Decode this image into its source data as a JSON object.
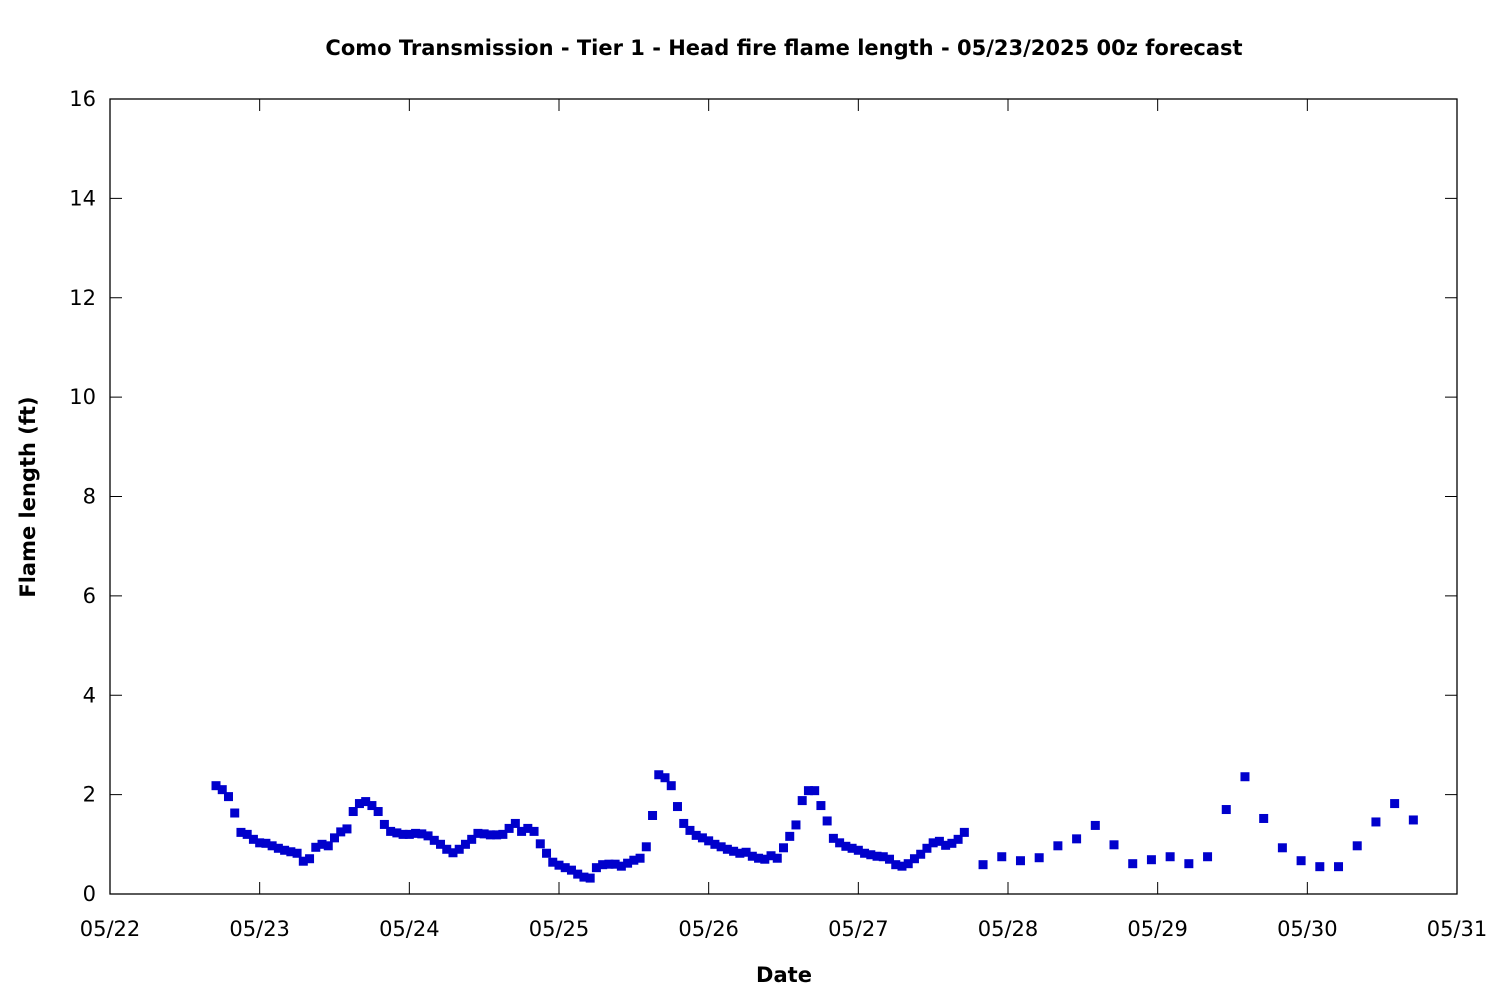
{
  "chart_data": {
    "type": "scatter",
    "title": "Como Transmission - Tier 1 - Head fire flame length - 05/23/2025 00z forecast",
    "xlabel": "Date",
    "ylabel": "Flame length (ft)",
    "xlim": [
      "05/22",
      "05/31"
    ],
    "ylim": [
      0,
      16
    ],
    "x_ticks": [
      "05/22",
      "05/23",
      "05/24",
      "05/25",
      "05/26",
      "05/27",
      "05/28",
      "05/29",
      "05/30",
      "05/31"
    ],
    "y_ticks": [
      0,
      2,
      4,
      6,
      8,
      10,
      12,
      14,
      16
    ],
    "grid": false,
    "marker_color": "#0000cc",
    "series": [
      {
        "points": [
          [
            "05/22 17:00",
            2.18
          ],
          [
            "05/22 18:00",
            2.1
          ],
          [
            "05/22 19:00",
            1.96
          ],
          [
            "05/22 20:00",
            1.63
          ],
          [
            "05/22 21:00",
            1.24
          ],
          [
            "05/22 22:00",
            1.2
          ],
          [
            "05/22 23:00",
            1.1
          ],
          [
            "05/23 00:00",
            1.03
          ],
          [
            "05/23 01:00",
            1.02
          ],
          [
            "05/23 02:00",
            0.97
          ],
          [
            "05/23 03:00",
            0.92
          ],
          [
            "05/23 04:00",
            0.88
          ],
          [
            "05/23 05:00",
            0.85
          ],
          [
            "05/23 06:00",
            0.82
          ],
          [
            "05/23 07:00",
            0.66
          ],
          [
            "05/23 08:00",
            0.71
          ],
          [
            "05/23 09:00",
            0.94
          ],
          [
            "05/23 10:00",
            1.0
          ],
          [
            "05/23 11:00",
            0.97
          ],
          [
            "05/23 12:00",
            1.13
          ],
          [
            "05/23 13:00",
            1.25
          ],
          [
            "05/23 14:00",
            1.31
          ],
          [
            "05/23 15:00",
            1.66
          ],
          [
            "05/23 16:00",
            1.82
          ],
          [
            "05/23 17:00",
            1.86
          ],
          [
            "05/23 18:00",
            1.78
          ],
          [
            "05/23 19:00",
            1.66
          ],
          [
            "05/23 20:00",
            1.4
          ],
          [
            "05/23 21:00",
            1.26
          ],
          [
            "05/23 22:00",
            1.23
          ],
          [
            "05/23 23:00",
            1.2
          ],
          [
            "05/24 00:00",
            1.2
          ],
          [
            "05/24 01:00",
            1.22
          ],
          [
            "05/24 02:00",
            1.21
          ],
          [
            "05/24 03:00",
            1.17
          ],
          [
            "05/24 04:00",
            1.08
          ],
          [
            "05/24 05:00",
            1.0
          ],
          [
            "05/24 06:00",
            0.9
          ],
          [
            "05/24 07:00",
            0.83
          ],
          [
            "05/24 08:00",
            0.9
          ],
          [
            "05/24 09:00",
            1.0
          ],
          [
            "05/24 10:00",
            1.1
          ],
          [
            "05/24 11:00",
            1.22
          ],
          [
            "05/24 12:00",
            1.21
          ],
          [
            "05/24 13:00",
            1.19
          ],
          [
            "05/24 14:00",
            1.19
          ],
          [
            "05/24 15:00",
            1.2
          ],
          [
            "05/24 16:00",
            1.32
          ],
          [
            "05/24 17:00",
            1.42
          ],
          [
            "05/24 18:00",
            1.26
          ],
          [
            "05/24 19:00",
            1.32
          ],
          [
            "05/24 20:00",
            1.26
          ],
          [
            "05/24 21:00",
            1.01
          ],
          [
            "05/24 22:00",
            0.82
          ],
          [
            "05/24 23:00",
            0.64
          ],
          [
            "05/25 00:00",
            0.58
          ],
          [
            "05/25 01:00",
            0.53
          ],
          [
            "05/25 02:00",
            0.48
          ],
          [
            "05/25 03:00",
            0.4
          ],
          [
            "05/25 04:00",
            0.34
          ],
          [
            "05/25 05:00",
            0.32
          ],
          [
            "05/25 06:00",
            0.53
          ],
          [
            "05/25 07:00",
            0.59
          ],
          [
            "05/25 08:00",
            0.6
          ],
          [
            "05/25 09:00",
            0.6
          ],
          [
            "05/25 10:00",
            0.56
          ],
          [
            "05/25 11:00",
            0.62
          ],
          [
            "05/25 12:00",
            0.68
          ],
          [
            "05/25 13:00",
            0.72
          ],
          [
            "05/25 14:00",
            0.95
          ],
          [
            "05/25 15:00",
            1.58
          ],
          [
            "05/25 16:00",
            2.4
          ],
          [
            "05/25 17:00",
            2.34
          ],
          [
            "05/25 18:00",
            2.18
          ],
          [
            "05/25 19:00",
            1.76
          ],
          [
            "05/25 20:00",
            1.42
          ],
          [
            "05/25 21:00",
            1.28
          ],
          [
            "05/25 22:00",
            1.18
          ],
          [
            "05/25 23:00",
            1.13
          ],
          [
            "05/26 00:00",
            1.07
          ],
          [
            "05/26 01:00",
            1.0
          ],
          [
            "05/26 02:00",
            0.95
          ],
          [
            "05/26 03:00",
            0.9
          ],
          [
            "05/26 04:00",
            0.86
          ],
          [
            "05/26 05:00",
            0.82
          ],
          [
            "05/26 06:00",
            0.84
          ],
          [
            "05/26 07:00",
            0.76
          ],
          [
            "05/26 08:00",
            0.72
          ],
          [
            "05/26 09:00",
            0.7
          ],
          [
            "05/26 10:00",
            0.77
          ],
          [
            "05/26 11:00",
            0.72
          ],
          [
            "05/26 12:00",
            0.93
          ],
          [
            "05/26 13:00",
            1.16
          ],
          [
            "05/26 14:00",
            1.39
          ],
          [
            "05/26 15:00",
            1.88
          ],
          [
            "05/26 16:00",
            2.08
          ],
          [
            "05/26 17:00",
            2.08
          ],
          [
            "05/26 18:00",
            1.78
          ],
          [
            "05/26 19:00",
            1.47
          ],
          [
            "05/26 20:00",
            1.12
          ],
          [
            "05/26 21:00",
            1.03
          ],
          [
            "05/26 22:00",
            0.96
          ],
          [
            "05/26 23:00",
            0.92
          ],
          [
            "05/27 00:00",
            0.88
          ],
          [
            "05/27 01:00",
            0.82
          ],
          [
            "05/27 02:00",
            0.79
          ],
          [
            "05/27 03:00",
            0.76
          ],
          [
            "05/27 04:00",
            0.75
          ],
          [
            "05/27 05:00",
            0.7
          ],
          [
            "05/27 06:00",
            0.59
          ],
          [
            "05/27 07:00",
            0.56
          ],
          [
            "05/27 08:00",
            0.61
          ],
          [
            "05/27 09:00",
            0.71
          ],
          [
            "05/27 10:00",
            0.8
          ],
          [
            "05/27 11:00",
            0.92
          ],
          [
            "05/27 12:00",
            1.03
          ],
          [
            "05/27 13:00",
            1.06
          ],
          [
            "05/27 14:00",
            0.98
          ],
          [
            "05/27 15:00",
            1.02
          ],
          [
            "05/27 16:00",
            1.1
          ],
          [
            "05/27 17:00",
            1.24
          ],
          [
            "05/27 20:00",
            0.59
          ],
          [
            "05/27 23:00",
            0.75
          ],
          [
            "05/28 02:00",
            0.67
          ],
          [
            "05/28 05:00",
            0.73
          ],
          [
            "05/28 08:00",
            0.97
          ],
          [
            "05/28 11:00",
            1.11
          ],
          [
            "05/28 14:00",
            1.38
          ],
          [
            "05/28 17:00",
            0.99
          ],
          [
            "05/28 20:00",
            0.61
          ],
          [
            "05/28 23:00",
            0.69
          ],
          [
            "05/29 02:00",
            0.75
          ],
          [
            "05/29 05:00",
            0.61
          ],
          [
            "05/29 08:00",
            0.75
          ],
          [
            "05/29 11:00",
            1.7
          ],
          [
            "05/29 14:00",
            2.36
          ],
          [
            "05/29 17:00",
            1.52
          ],
          [
            "05/29 20:00",
            0.93
          ],
          [
            "05/29 23:00",
            0.67
          ],
          [
            "05/30 02:00",
            0.55
          ],
          [
            "05/30 05:00",
            0.55
          ],
          [
            "05/30 08:00",
            0.97
          ],
          [
            "05/30 11:00",
            1.45
          ],
          [
            "05/30 14:00",
            1.82
          ],
          [
            "05/30 17:00",
            1.49
          ]
        ]
      }
    ]
  }
}
